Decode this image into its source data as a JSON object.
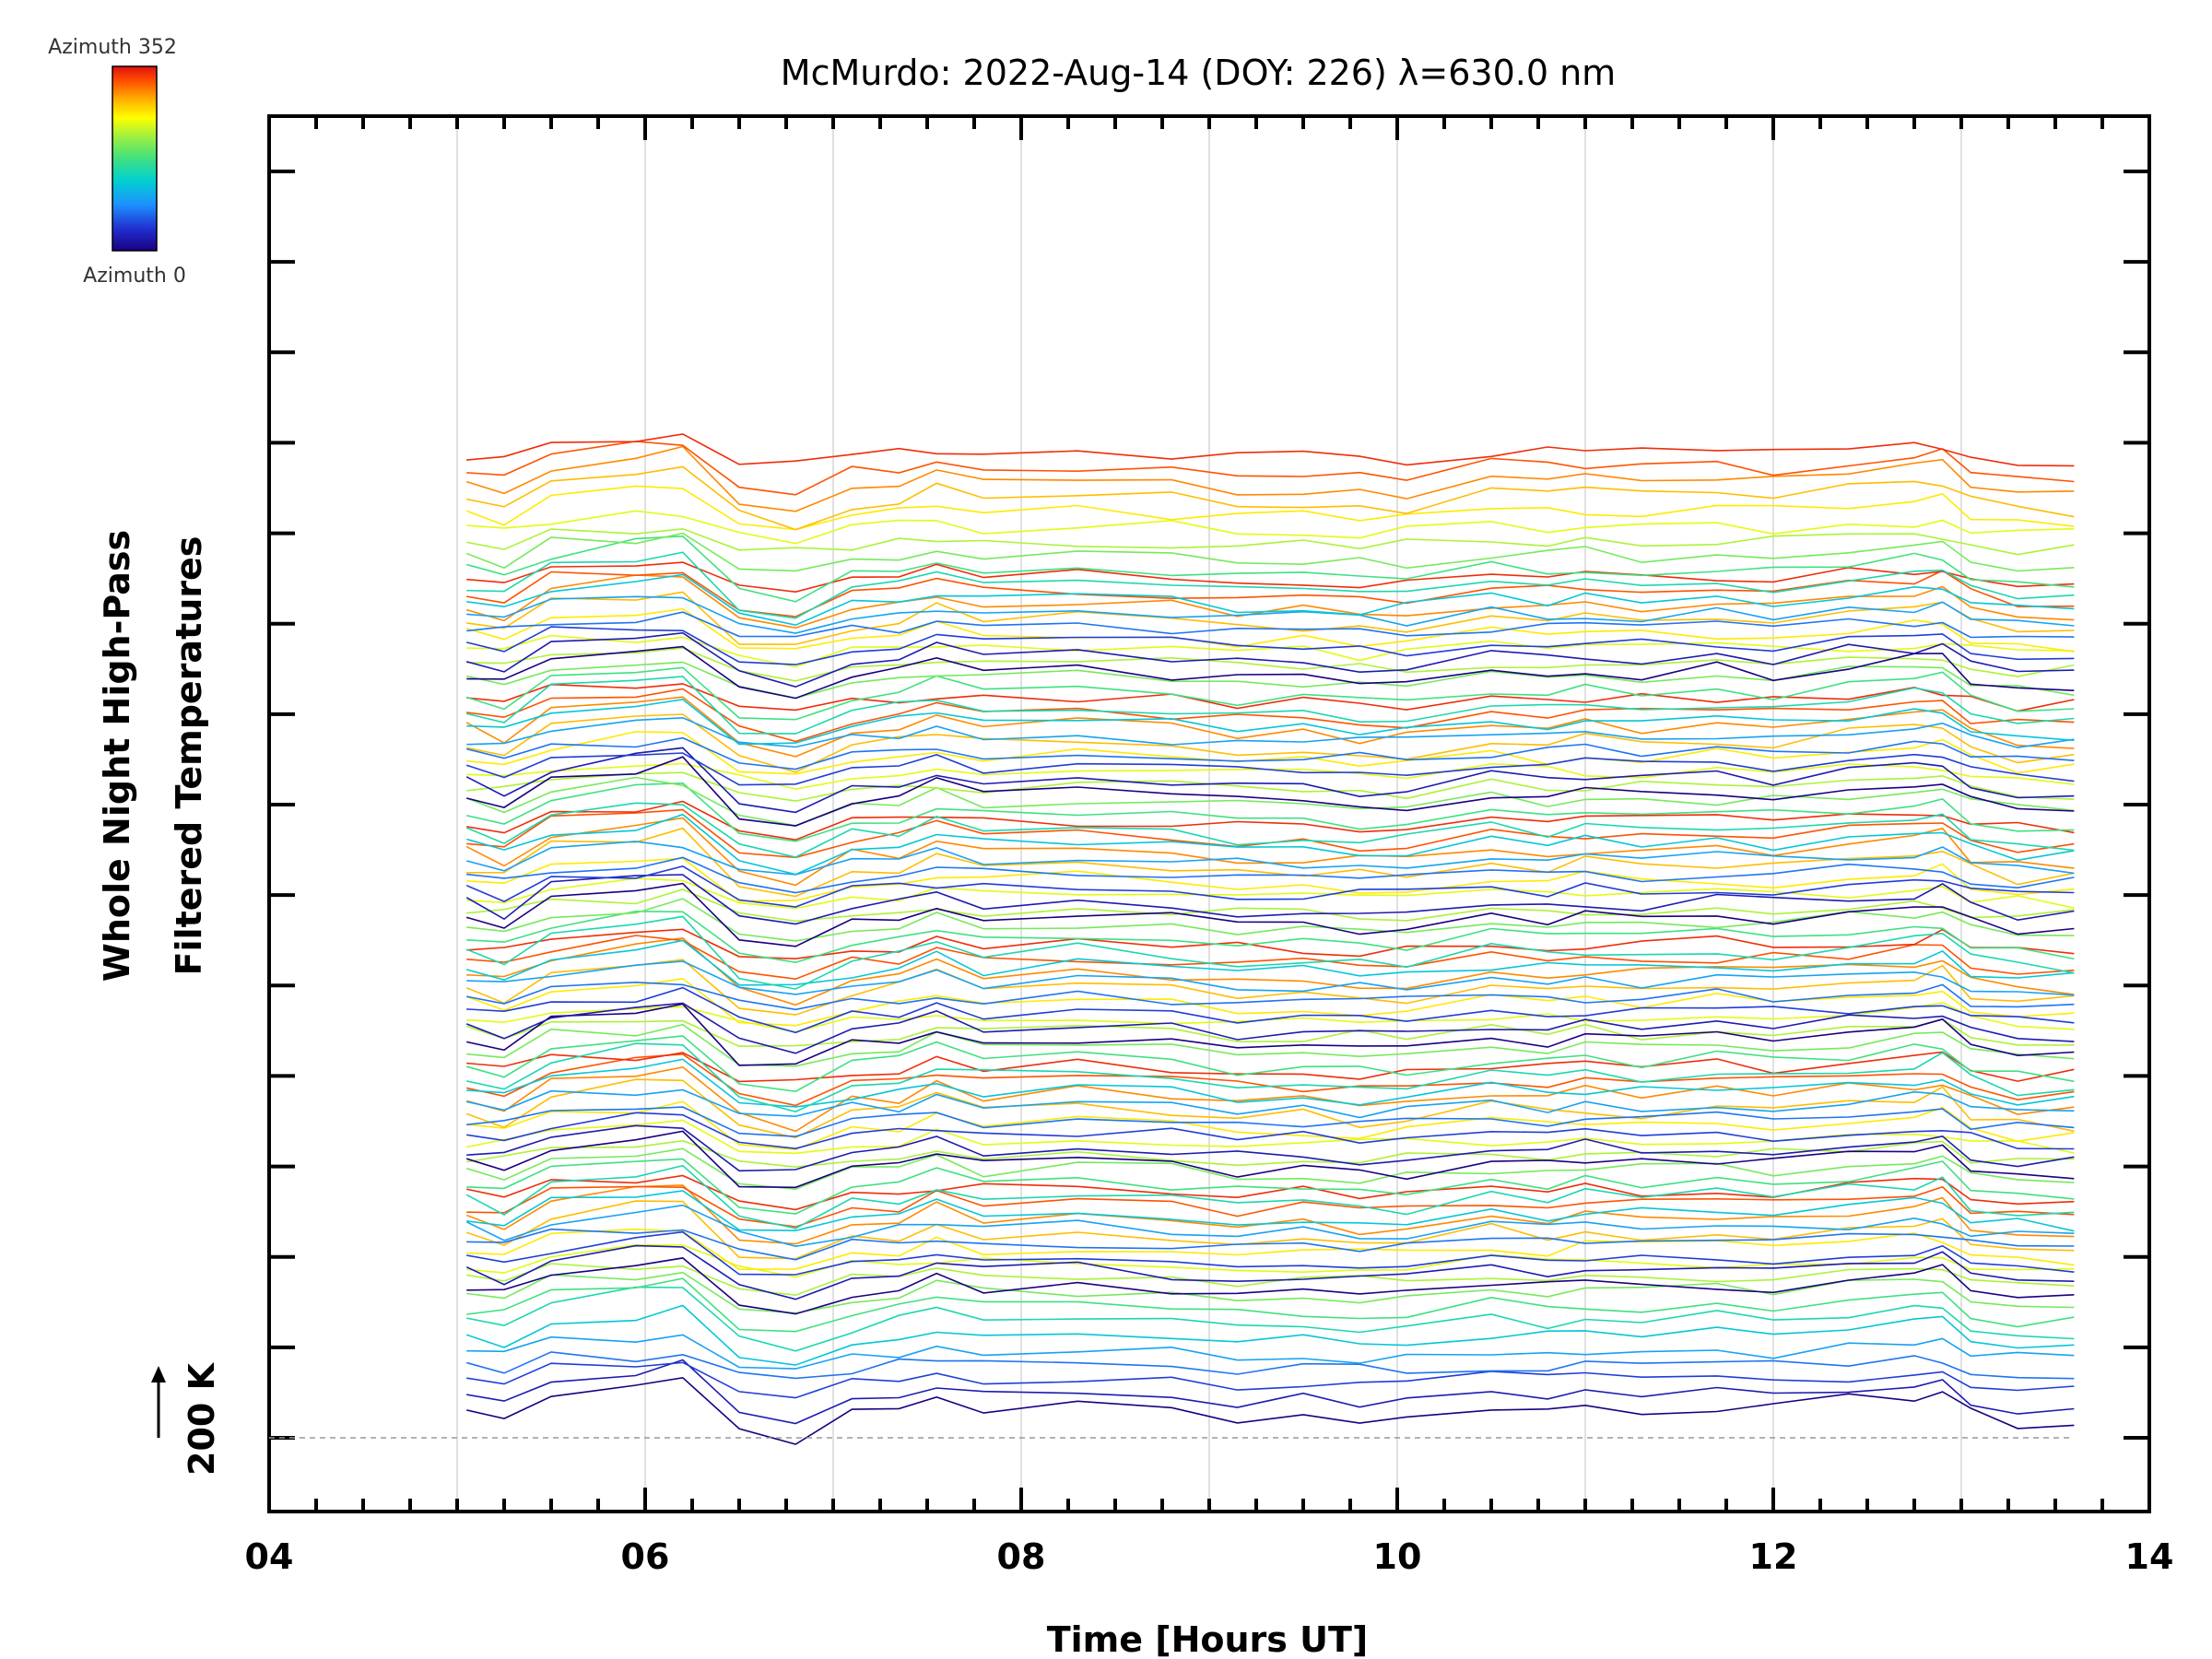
{
  "chart_data": {
    "type": "line",
    "title": "McMurdo: 2022-Aug-14 (DOY: 226) λ=630.0 nm",
    "xlabel": "Time [Hours UT]",
    "ylabel_line1": "Whole Night High-Pass",
    "ylabel_line2": "Filtered Temperatures",
    "y_scale_marker": "200 K",
    "xlim": [
      4,
      14
    ],
    "x_ticks": [
      "04",
      "06",
      "08",
      "10",
      "12",
      "14"
    ],
    "colorbar": {
      "top_label": "Azimuth 352",
      "bottom_label": "Azimuth 0",
      "colors": [
        "#1a0080",
        "#2030d0",
        "#1e90ff",
        "#00d0d0",
        "#40e080",
        "#a0f040",
        "#ffff00",
        "#ffb000",
        "#ff5000",
        "#e01010"
      ]
    },
    "x": [
      5.05,
      5.25,
      5.5,
      5.95,
      6.2,
      6.5,
      6.8,
      7.1,
      7.35,
      7.55,
      7.8,
      8.3,
      8.8,
      9.15,
      9.5,
      9.8,
      10.05,
      10.5,
      10.8,
      11.0,
      11.3,
      11.7,
      12.0,
      12.4,
      12.75,
      12.9,
      13.05,
      13.3,
      13.6
    ],
    "profile": [
      0,
      -4,
      8,
      12,
      14,
      -8,
      -12,
      -2,
      0,
      6,
      0,
      2,
      0,
      -3,
      -2,
      -4,
      -4,
      2,
      0,
      2,
      0,
      2,
      0,
      4,
      6,
      8,
      -2,
      -6,
      -6
    ],
    "bands": [
      {
        "level": 4,
        "n": 16
      },
      {
        "level": 56,
        "n": 16
      },
      {
        "level": 108,
        "n": 16
      },
      {
        "level": 160,
        "n": 16
      },
      {
        "level": 212,
        "n": 16
      },
      {
        "level": 264,
        "n": 16
      },
      {
        "level": 316,
        "n": 16
      }
    ],
    "band_spacing": 6.2,
    "y_ticks_count": 15,
    "y_range": [
      -40,
      700
    ]
  }
}
